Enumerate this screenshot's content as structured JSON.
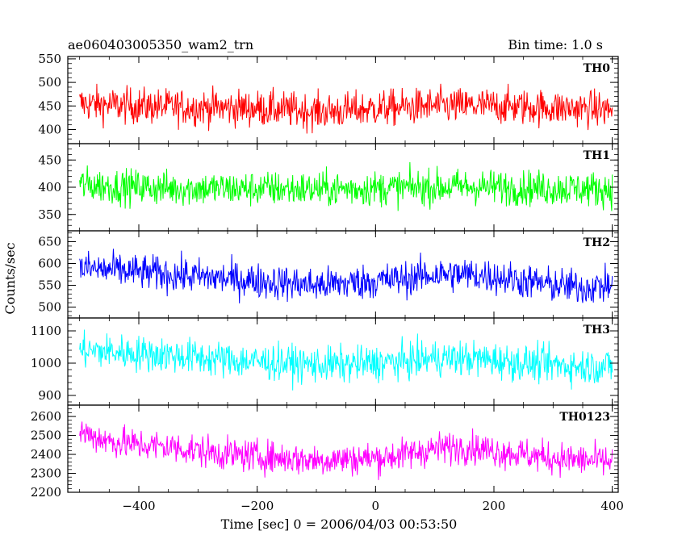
{
  "header": {
    "left_title": "ae060403005350_wam2_trn",
    "right_title": "Bin time: 1.0 s"
  },
  "chart_data": {
    "type": "line",
    "xlabel": "Time [sec] 0 = 2006/04/03 00:53:50",
    "ylabel": "Counts/sec",
    "xlim": [
      -520,
      410
    ],
    "x_ticks": [
      -400,
      -200,
      0,
      200,
      400
    ],
    "x_tick_labels": [
      "−400",
      "−200",
      "0",
      "200",
      "400"
    ],
    "x_minor_step": 50,
    "series": [
      {
        "name": "TH0",
        "color": "#ff0000",
        "ylim": [
          370,
          555
        ],
        "y_ticks": [
          400,
          450,
          500,
          550
        ],
        "y_minor_step": 10,
        "x": [
          -500,
          -450,
          -400,
          -350,
          -300,
          -250,
          -200,
          -150,
          -100,
          -50,
          0,
          50,
          100,
          150,
          200,
          250,
          300,
          350,
          400
        ],
        "mean": [
          455,
          452,
          450,
          448,
          447,
          446,
          445,
          442,
          438,
          440,
          445,
          447,
          450,
          450,
          450,
          448,
          446,
          444,
          442
        ],
        "spread": 38
      },
      {
        "name": "TH1",
        "color": "#00ff00",
        "ylim": [
          320,
          480
        ],
        "y_ticks": [
          350,
          400,
          450
        ],
        "y_minor_step": 10,
        "x": [
          -500,
          -450,
          -400,
          -350,
          -300,
          -250,
          -200,
          -150,
          -100,
          -50,
          0,
          50,
          100,
          150,
          200,
          250,
          300,
          350,
          400
        ],
        "mean": [
          405,
          402,
          400,
          398,
          398,
          397,
          397,
          397,
          396,
          397,
          398,
          399,
          400,
          401,
          400,
          399,
          398,
          397,
          396
        ],
        "spread": 32
      },
      {
        "name": "TH2",
        "color": "#0000ff",
        "ylim": [
          475,
          675
        ],
        "y_ticks": [
          500,
          550,
          600,
          650
        ],
        "y_minor_step": 10,
        "x": [
          -500,
          -450,
          -400,
          -350,
          -300,
          -250,
          -200,
          -150,
          -100,
          -50,
          0,
          50,
          100,
          150,
          200,
          250,
          300,
          350,
          400
        ],
        "mean": [
          590,
          585,
          580,
          575,
          570,
          565,
          560,
          555,
          550,
          555,
          560,
          565,
          575,
          575,
          570,
          560,
          550,
          545,
          550
        ],
        "spread": 40
      },
      {
        "name": "TH3",
        "color": "#00ffff",
        "ylim": [
          870,
          1140
        ],
        "y_ticks": [
          900,
          1000,
          1100
        ],
        "y_minor_step": 20,
        "x": [
          -500,
          -450,
          -400,
          -350,
          -300,
          -250,
          -200,
          -150,
          -100,
          -50,
          0,
          50,
          100,
          150,
          200,
          250,
          300,
          350,
          400
        ],
        "mean": [
          1040,
          1035,
          1030,
          1025,
          1018,
          1010,
          1005,
          1000,
          995,
          995,
          1000,
          1005,
          1015,
          1015,
          1010,
          1000,
          995,
          990,
          990
        ],
        "spread": 55
      },
      {
        "name": "TH0123",
        "color": "#ff00ff",
        "ylim": [
          2200,
          2660
        ],
        "y_ticks": [
          2200,
          2300,
          2400,
          2500,
          2600
        ],
        "y_minor_step": 20,
        "x": [
          -500,
          -450,
          -400,
          -350,
          -300,
          -250,
          -200,
          -150,
          -100,
          -50,
          0,
          50,
          100,
          150,
          200,
          250,
          300,
          350,
          400
        ],
        "mean": [
          2520,
          2470,
          2450,
          2440,
          2420,
          2400,
          2390,
          2380,
          2370,
          2375,
          2380,
          2400,
          2430,
          2440,
          2420,
          2400,
          2380,
          2370,
          2360
        ],
        "spread": 85
      }
    ]
  }
}
